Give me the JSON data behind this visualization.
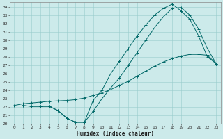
{
  "title": "",
  "xlabel": "Humidex (Indice chaleur)",
  "bg_color": "#cceaea",
  "line_color": "#006868",
  "grid_color": "#99cccc",
  "xlim": [
    -0.5,
    23.5
  ],
  "ylim": [
    20,
    34.5
  ],
  "yticks": [
    20,
    21,
    22,
    23,
    24,
    25,
    26,
    27,
    28,
    29,
    30,
    31,
    32,
    33,
    34
  ],
  "xticks": [
    0,
    1,
    2,
    3,
    4,
    5,
    6,
    7,
    8,
    9,
    10,
    11,
    12,
    13,
    14,
    15,
    16,
    17,
    18,
    19,
    20,
    21,
    22,
    23
  ],
  "line1_x": [
    0,
    1,
    2,
    3,
    4,
    5,
    6,
    7,
    8,
    9,
    10,
    11,
    12,
    13,
    14,
    15,
    16,
    17,
    18,
    19,
    20,
    21,
    22,
    23
  ],
  "line1_y": [
    22.2,
    22.4,
    22.5,
    22.6,
    22.7,
    22.75,
    22.8,
    22.9,
    23.1,
    23.4,
    23.7,
    24.1,
    24.6,
    25.1,
    25.7,
    26.3,
    26.9,
    27.4,
    27.8,
    28.1,
    28.3,
    28.3,
    28.2,
    27.2
  ],
  "line2_x": [
    1,
    2,
    3,
    4,
    5,
    6,
    7,
    8,
    9,
    10,
    11,
    12,
    13,
    14,
    15,
    16,
    17,
    18,
    19,
    20,
    21,
    22,
    23
  ],
  "line2_y": [
    22.2,
    22.1,
    22.1,
    22.1,
    21.6,
    20.7,
    20.2,
    20.2,
    21.5,
    23.0,
    24.3,
    25.5,
    27.0,
    28.5,
    30.0,
    31.5,
    32.8,
    33.8,
    33.9,
    33.0,
    31.3,
    29.0,
    27.2
  ],
  "line3_x": [
    1,
    2,
    3,
    4,
    5,
    6,
    7,
    8,
    9,
    10,
    11,
    12,
    13,
    14,
    15,
    16,
    17,
    18,
    19,
    20,
    21,
    22,
    23
  ],
  "line3_y": [
    22.2,
    22.1,
    22.1,
    22.1,
    21.6,
    20.7,
    20.2,
    20.2,
    22.8,
    24.0,
    26.0,
    27.5,
    29.0,
    30.5,
    31.8,
    33.0,
    33.8,
    34.3,
    33.5,
    32.5,
    30.5,
    28.0,
    27.2
  ]
}
